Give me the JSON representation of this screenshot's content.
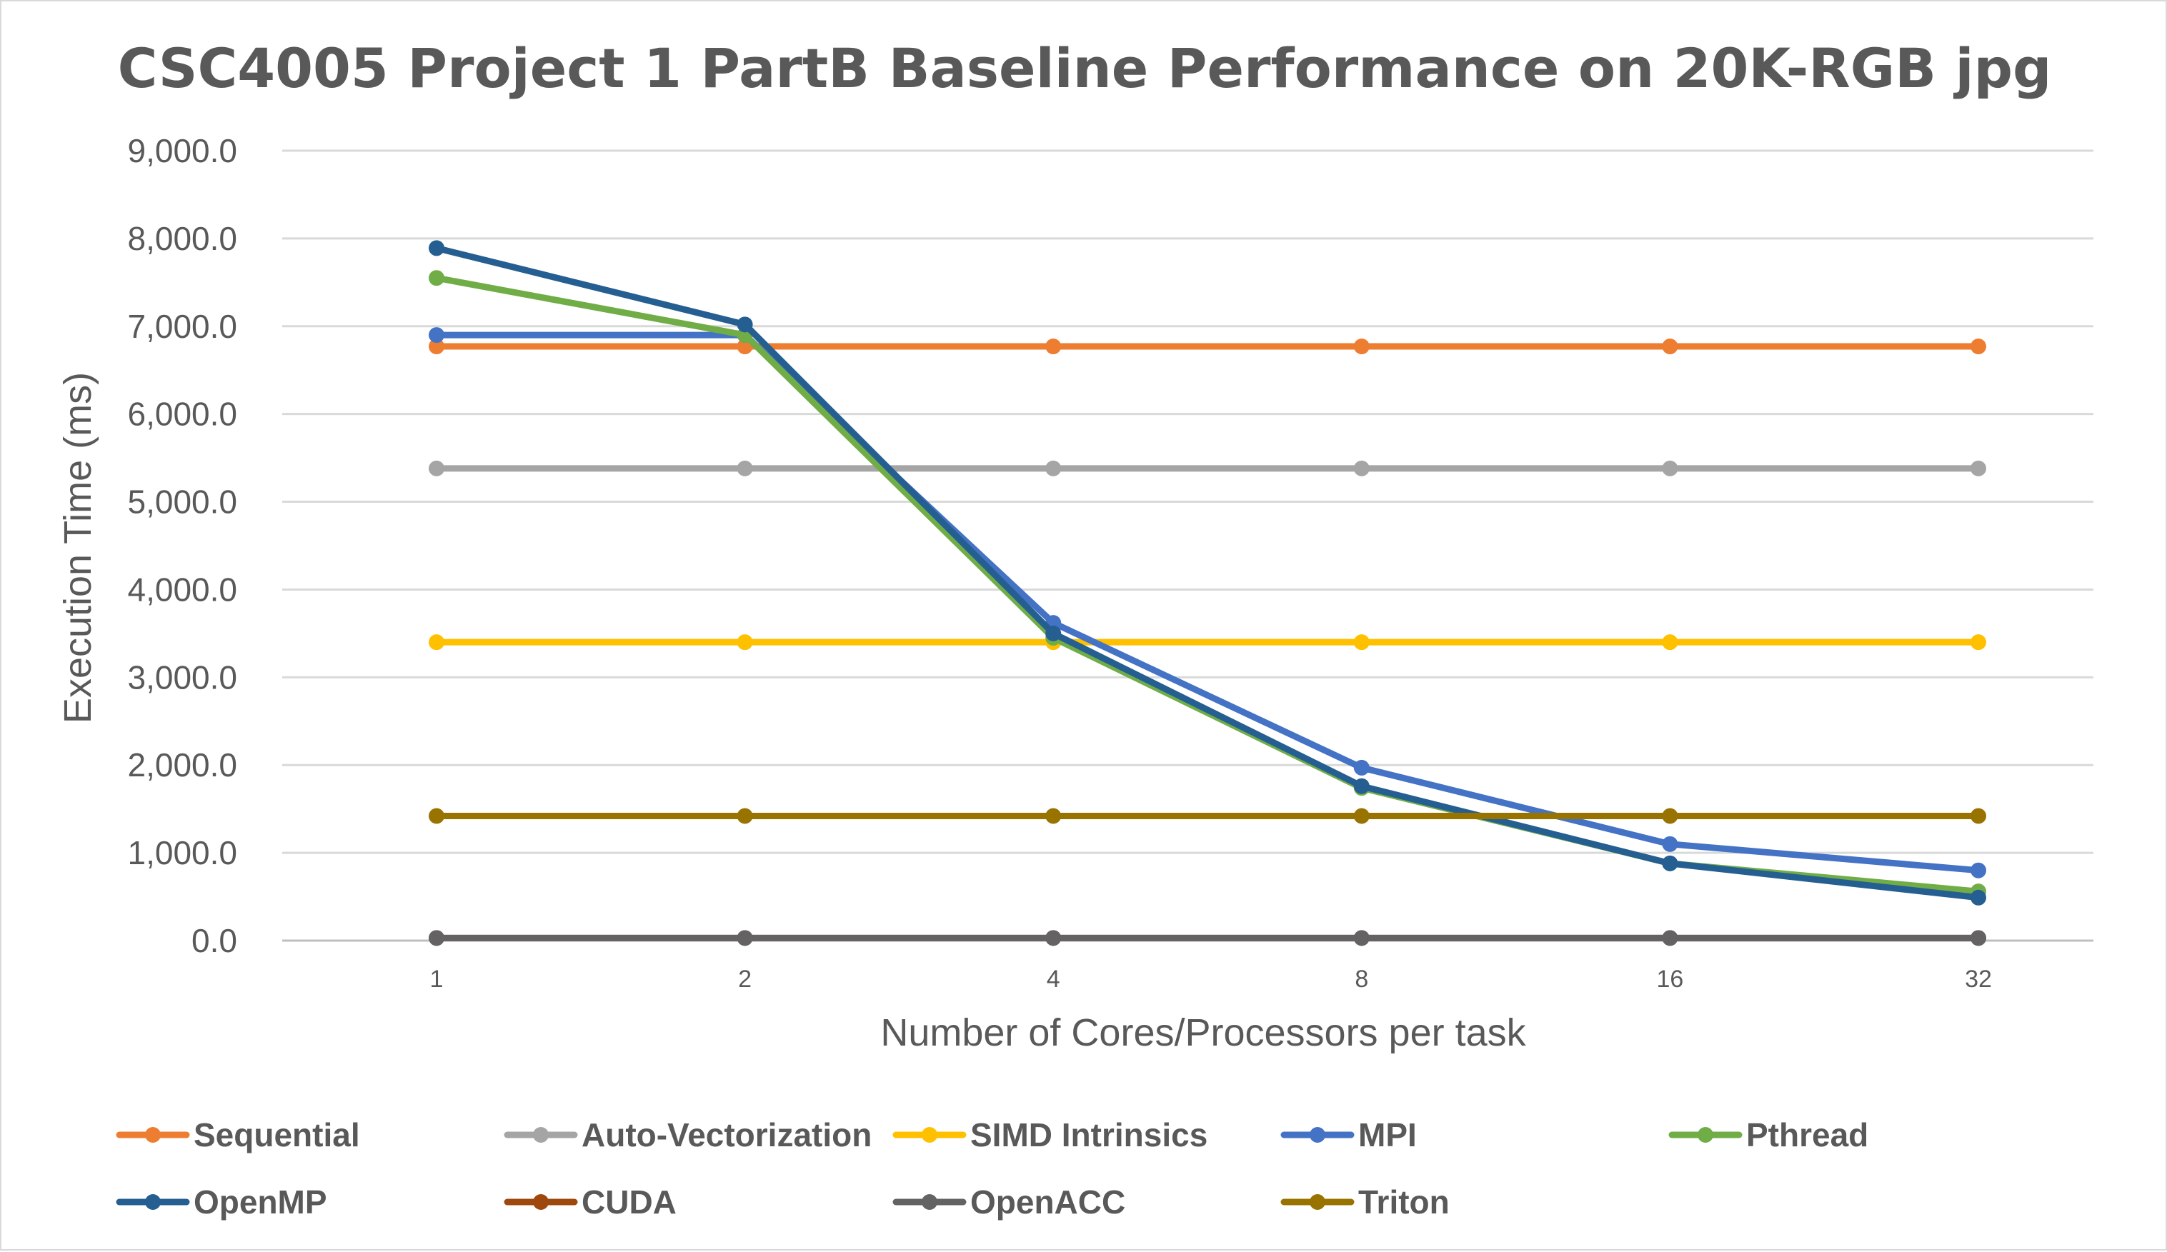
{
  "chart_data": {
    "type": "line",
    "title": "CSC4005 Project 1 PartB Baseline Performance on 20K-RGB jpg",
    "xlabel": "Number of Cores/Processors per task",
    "ylabel": "Execution Time (ms)",
    "categories": [
      "1",
      "2",
      "4",
      "8",
      "16",
      "32"
    ],
    "ylim": [
      0,
      9000
    ],
    "yticks": [
      "0.0",
      "1,000.0",
      "2,000.0",
      "3,000.0",
      "4,000.0",
      "5,000.0",
      "6,000.0",
      "7,000.0",
      "8,000.0",
      "9,000.0"
    ],
    "grid": true,
    "legend_position": "bottom",
    "series": [
      {
        "name": "Sequential",
        "color": "#ED7D31",
        "values": [
          6770,
          6770,
          6770,
          6770,
          6770,
          6770
        ]
      },
      {
        "name": "Auto-Vectorization",
        "color": "#A5A5A5",
        "values": [
          5380,
          5380,
          5380,
          5380,
          5380,
          5380
        ]
      },
      {
        "name": "SIMD Intrinsics",
        "color": "#FFC000",
        "values": [
          3400,
          3400,
          3400,
          3400,
          3400,
          3400
        ]
      },
      {
        "name": "MPI",
        "color": "#4472C4",
        "values": [
          6900,
          6900,
          3620,
          1970,
          1100,
          800
        ]
      },
      {
        "name": "Pthread",
        "color": "#70AD47",
        "values": [
          7550,
          6900,
          3450,
          1740,
          880,
          560
        ]
      },
      {
        "name": "OpenMP",
        "color": "#255E91",
        "values": [
          7890,
          7020,
          3500,
          1760,
          880,
          490
        ]
      },
      {
        "name": "CUDA",
        "color": "#9E480E",
        "values": [
          30,
          30,
          30,
          30,
          30,
          30
        ]
      },
      {
        "name": "OpenACC",
        "color": "#636363",
        "values": [
          30,
          30,
          30,
          30,
          30,
          30
        ]
      },
      {
        "name": "Triton",
        "color": "#997300",
        "values": [
          1420,
          1420,
          1420,
          1420,
          1420,
          1420
        ]
      }
    ]
  }
}
